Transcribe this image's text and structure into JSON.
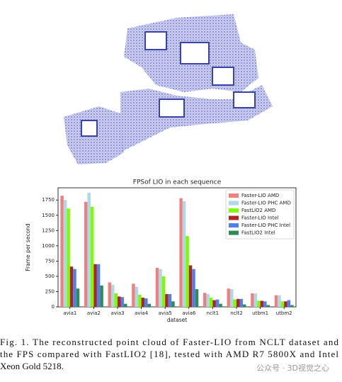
{
  "chart_data": {
    "type": "bar",
    "title": "FPSof LIO in each sequence",
    "x_label": "dataset",
    "y_label": "Frame per second",
    "categories": [
      "avia1",
      "avia2",
      "avia3",
      "avia4",
      "avia5",
      "avia6",
      "nclt1",
      "nclt2",
      "utbm1",
      "utbm2"
    ],
    "series": [
      {
        "name": "Faster-LIO AMD",
        "color": "#f08080",
        "values": [
          1820,
          1720,
          400,
          380,
          640,
          1780,
          230,
          300,
          220,
          190
        ]
      },
      {
        "name": "Faster-LIO PHC AMD",
        "color": "#add8e6",
        "values": [
          1750,
          1870,
          360,
          330,
          620,
          1730,
          210,
          290,
          220,
          190
        ]
      },
      {
        "name": "FastLIO2 AMD",
        "color": "#7cfc00",
        "values": [
          1610,
          1640,
          220,
          200,
          500,
          1160,
          150,
          120,
          100,
          90
        ]
      },
      {
        "name": "Faster-LIO Intel",
        "color": "#b22222",
        "values": [
          660,
          700,
          170,
          150,
          210,
          680,
          110,
          130,
          100,
          90
        ]
      },
      {
        "name": "Faster-LIO PHC Intel",
        "color": "#4f7fe8",
        "values": [
          620,
          700,
          160,
          140,
          210,
          620,
          120,
          130,
          90,
          110
        ]
      },
      {
        "name": "FastLIO2 Intel",
        "color": "#2e8b57",
        "values": [
          300,
          350,
          50,
          50,
          90,
          290,
          50,
          40,
          30,
          30
        ]
      }
    ],
    "ylim": [
      0,
      1950
    ],
    "yticks": [
      0,
      250,
      500,
      750,
      1000,
      1250,
      1500,
      1750
    ],
    "legend": "upper right"
  },
  "caption": [
    "Fig. 1.    The reconstructed point cloud of Faster-LIO from NCLT dataset and",
    "the FPS compared with FastLIO2 [18], tested with AMD R7 5800X and Intel",
    "Xeon Gold 5218."
  ],
  "watermark": "公众号 · 3D视觉之心"
}
